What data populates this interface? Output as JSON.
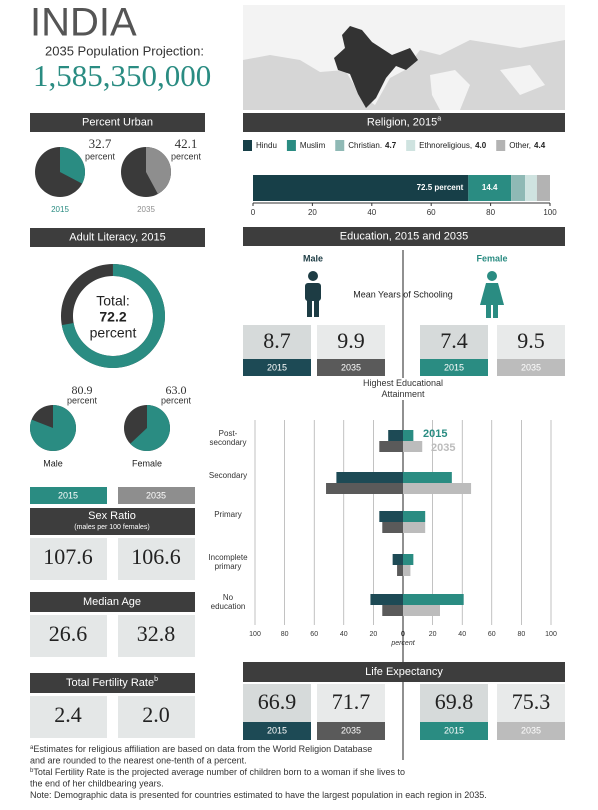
{
  "header": {
    "title": "INDIA",
    "subtitle": "2035 Population Projection:",
    "population": "1,585,350,000"
  },
  "chart_data": [
    {
      "type": "pie",
      "title": "Percent Urban",
      "categories": [
        "2015",
        "2035"
      ],
      "values": [
        32.7,
        42.1
      ],
      "unit": "percent",
      "colors": [
        "#2a8c82",
        "#8e8e8e"
      ]
    },
    {
      "type": "stacked-bar",
      "title": "Religion, 2015",
      "title_note": "a",
      "series": [
        {
          "name": "Hindu",
          "color": "#173f48",
          "values": [
            72.5
          ],
          "value_labels": [
            "72.5 percent"
          ],
          "label_position": "bar"
        },
        {
          "name": "Muslim",
          "color": "#2a8c82",
          "values": [
            14.4
          ],
          "label_position": "bar"
        },
        {
          "name": "Christian.",
          "color": "#8fb9b5",
          "values": [
            4.7
          ],
          "label_position": "legend"
        },
        {
          "name": "Ethnoreligious,",
          "color": "#cfe3e0",
          "values": [
            4.0
          ],
          "value_labels": [
            "4.0"
          ],
          "label_position": "legend"
        },
        {
          "name": "Other,",
          "color": "#b3b3b3",
          "values": [
            4.4
          ],
          "label_position": "legend"
        }
      ],
      "xlim": [
        0,
        100
      ],
      "xticks": [
        0,
        20,
        40,
        60,
        80,
        100
      ]
    },
    {
      "type": "donut",
      "title": "Adult Literacy, 2015",
      "total_label": "Total:",
      "total": 72.2,
      "unit": "percent",
      "categories": [
        "Male",
        "Female"
      ],
      "values": [
        80.9,
        63.0
      ],
      "value_labels": [
        "80.9",
        "63.0"
      ],
      "color": "#2a8c82"
    },
    {
      "type": "diverging-bar",
      "title": "Education, 2015 and 2035",
      "groups": [
        "Male",
        "Female"
      ],
      "mean_years_label": "Mean Years of Schooling",
      "years": [
        "2015",
        "2035"
      ],
      "mean_years": [
        [
          8.7,
          9.9
        ],
        [
          7.4,
          9.5
        ]
      ],
      "subtitle": "Highest Educational Attainment",
      "categories": [
        "Post-secondary",
        "Secondary",
        "Primary",
        "Incomplete primary",
        "No education"
      ],
      "series": [
        {
          "name": "2015",
          "color": "#2a8c82",
          "color_male": "#1d4a55",
          "male": [
            10,
            45,
            16,
            7,
            22
          ],
          "female": [
            7,
            33,
            15,
            7,
            41
          ]
        },
        {
          "name": "2035",
          "color": "#bcbcbc",
          "color_male": "#5a5a5a",
          "male": [
            16,
            52,
            14,
            4,
            14
          ],
          "female": [
            13,
            46,
            15,
            5,
            25
          ]
        }
      ],
      "xlim": [
        0,
        100
      ],
      "xticks": [
        0,
        20,
        40,
        60,
        80,
        100
      ],
      "xlabel": "percent"
    },
    {
      "type": "table",
      "title": "Life Expectancy",
      "years": [
        "2015",
        "2035"
      ],
      "values": [
        [
          66.9,
          71.7
        ],
        [
          69.8,
          75.3
        ]
      ]
    }
  ],
  "indicators": {
    "years": [
      "2015",
      "2035"
    ],
    "rows": [
      {
        "title": "Sex Ratio",
        "note": "(males per 100 females)",
        "values": [
          "107.6",
          "106.6"
        ]
      },
      {
        "title": "Median Age",
        "values": [
          "26.6",
          "32.8"
        ]
      },
      {
        "title": "Total Fertility Rate",
        "title_note": "b",
        "values": [
          "2.4",
          "2.0"
        ]
      }
    ]
  },
  "footnotes": [
    {
      "mark": "a",
      "lines": [
        "Estimates for religious affiliation are based on data from the World Religion Database",
        "and are rounded to the nearest one-tenth of a percent."
      ]
    },
    {
      "mark": "b",
      "lines": [
        "Total Fertility Rate is the projected average number of children born to a woman if she lives to",
        "the end of her childbearing years."
      ]
    },
    {
      "lines": [
        "Note: Demographic data is presented for countries estimated to have the largest population in each region in 2035."
      ]
    }
  ]
}
